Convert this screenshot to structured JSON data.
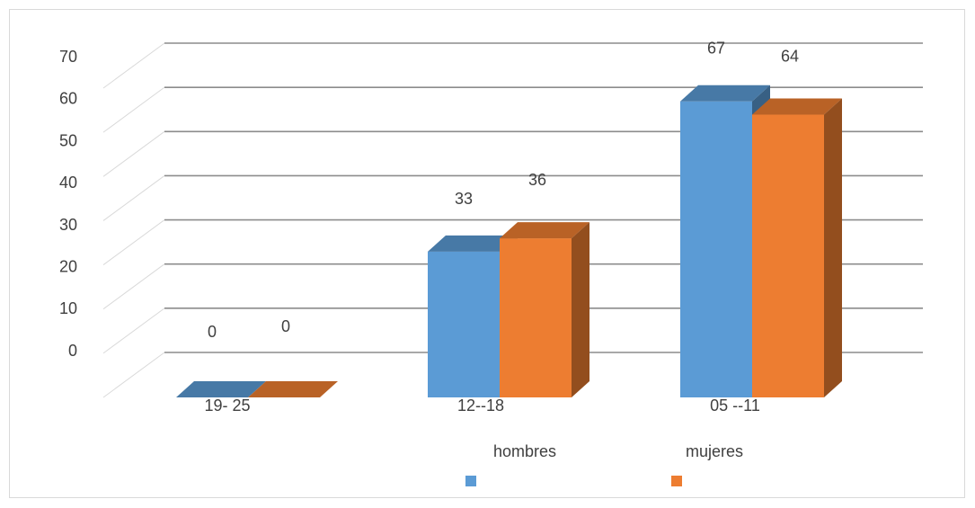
{
  "chart_data": {
    "type": "bar",
    "categories": [
      "19- 25",
      "12--18",
      "05 --11"
    ],
    "series": [
      {
        "name": "hombres",
        "values": [
          0,
          33,
          67
        ],
        "color": "#5b9bd5"
      },
      {
        "name": "mujeres",
        "values": [
          0,
          36,
          64
        ],
        "color": "#ed7d31"
      }
    ],
    "y_ticks": [
      "70",
      "60",
      "50",
      "40",
      "30",
      "20",
      "10",
      "0"
    ],
    "ylim": [
      0,
      70
    ],
    "grid": true,
    "legend_position": "bottom",
    "style": "3d-clustered-column"
  }
}
